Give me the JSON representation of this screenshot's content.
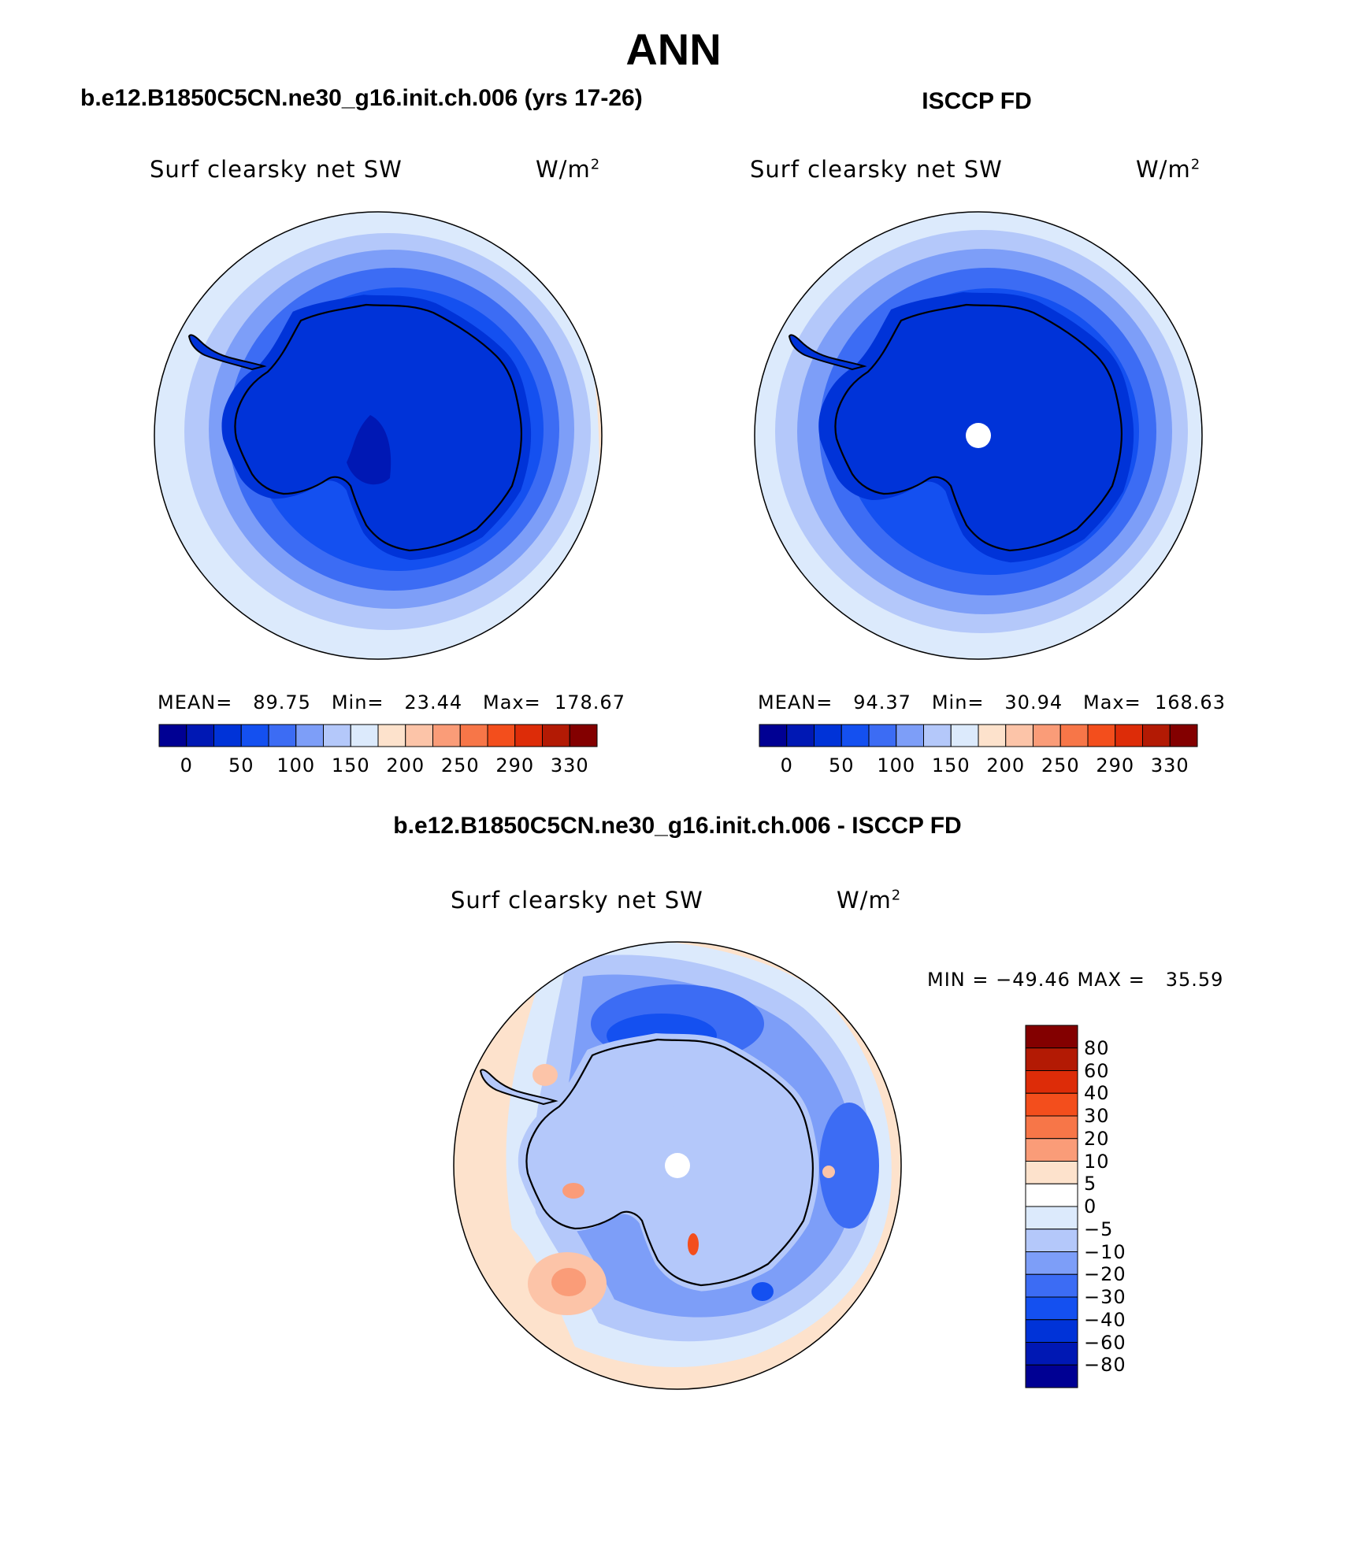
{
  "title": "ANN",
  "panels": [
    {
      "id": "model",
      "title": "b.e12.B1850C5CN.ne30_g16.init.ch.006 (yrs 17-26)",
      "variable": "Surf clearsky net SW",
      "units": "W/m",
      "units_sup": "2",
      "stats_label": "MEAN=   89.75   Min=   23.44   Max=  178.67"
    },
    {
      "id": "obs",
      "title": "ISCCP FD",
      "variable": "Surf clearsky net SW",
      "units": "W/m",
      "units_sup": "2",
      "stats_label": "MEAN=   94.37   Min=   30.94   Max=  168.63"
    }
  ],
  "diff_panel": {
    "title": "b.e12.B1850C5CN.ne30_g16.init.ch.006 - ISCCP FD",
    "variable": "Surf clearsky net SW",
    "units": "W/m",
    "units_sup": "2",
    "stats_label": "MIN = −49.46 MAX =   35.59"
  },
  "colorbar_abs": {
    "ticks": [
      "0",
      "50",
      "100",
      "150",
      "200",
      "250",
      "290",
      "330"
    ],
    "colors": [
      "#000093",
      "#0018b4",
      "#0033d8",
      "#1450f0",
      "#3c6cf4",
      "#7d9ef8",
      "#b4c8fa",
      "#dceafc",
      "#fde2cc",
      "#fcc4a8",
      "#fa9c78",
      "#f77648",
      "#f34e1c",
      "#dd2c08",
      "#b31a04",
      "#830000"
    ]
  },
  "colorbar_diff": {
    "ticks": [
      "80",
      "60",
      "40",
      "30",
      "20",
      "10",
      "5",
      "0",
      "−5",
      "−10",
      "−20",
      "−30",
      "−40",
      "−60",
      "−80"
    ],
    "colors": [
      "#830000",
      "#b31a04",
      "#dd2c08",
      "#f34e1c",
      "#f77648",
      "#fa9c78",
      "#fde2cc",
      "#ffffff",
      "#dceafc",
      "#b4c8fa",
      "#7d9ef8",
      "#3c6cf4",
      "#1450f0",
      "#0033d8",
      "#0018b4",
      "#000093"
    ]
  },
  "map_colors": {
    "ocean_outer": "#dceafc",
    "ocean_mid": "#b4c8fa",
    "ocean_band": "#7d9ef8",
    "ocean_inner": "#3c6cf4",
    "coast": "#1450f0",
    "continent": "#0033d8",
    "continent_deep": "#0018b4",
    "warm": "#fde2cc",
    "warm2": "#fcc4a8",
    "warm3": "#fa9c78",
    "hot": "#f34e1c",
    "hole": "#ffffff"
  }
}
